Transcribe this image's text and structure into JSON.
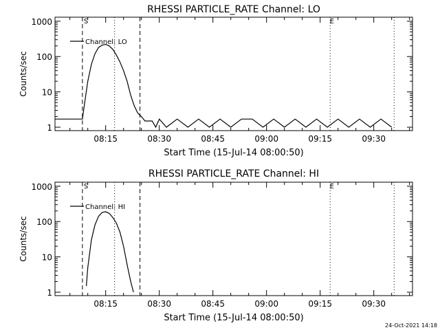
{
  "chart_data": [
    {
      "type": "line",
      "title": "RHESSI PARTICLE_RATE Channel: LO",
      "xlabel": "Start Time (15-Jul-14 08:00:50)",
      "ylabel": "Counts/sec",
      "x_tick_labels": [
        "08:15",
        "08:30",
        "08:45",
        "09:00",
        "09:15",
        "09:30"
      ],
      "x_tick_minutes": [
        15,
        30,
        45,
        60,
        75,
        90
      ],
      "y_tick_labels": [
        "1",
        "10",
        "100",
        "1000"
      ],
      "y_ticks": [
        1,
        10,
        100,
        1000
      ],
      "yscale": "log",
      "xlim_minutes": [
        0.83,
        100.83
      ],
      "ylim": [
        0.8,
        1300
      ],
      "legend": "Channel: LO",
      "legend_placement": "top-left",
      "marker_labels": [
        {
          "text": "S",
          "x_minutes": 9.5
        },
        {
          "text": "E",
          "x_minutes": 78.3
        }
      ],
      "dashed_lines_minutes": [
        8.5,
        24.6
      ],
      "dotted_lines_minutes": [
        17.5,
        77.8,
        95.7
      ],
      "series": [
        {
          "x": [
            0.8,
            6,
            8.5,
            9,
            10,
            11,
            12,
            13,
            14,
            15,
            16,
            17,
            18,
            19,
            20,
            21,
            22,
            23,
            24,
            25,
            26,
            27,
            28,
            29,
            30,
            32,
            35,
            38,
            41,
            44,
            47,
            50,
            53,
            56,
            59,
            62,
            65,
            68,
            71,
            74,
            77,
            80,
            83,
            86,
            89,
            92,
            95
          ],
          "y": [
            1.7,
            1.7,
            1.7,
            4,
            20,
            60,
            120,
            180,
            210,
            220,
            200,
            160,
            110,
            70,
            40,
            20,
            8,
            4,
            2.5,
            2,
            1.5,
            1.5,
            1.5,
            1,
            1.7,
            1,
            1.7,
            1,
            1.7,
            1,
            1.7,
            1,
            1.7,
            1.7,
            1,
            1.7,
            1,
            1.7,
            1,
            1.7,
            1,
            1.7,
            1,
            1.7,
            1,
            1.7,
            1
          ]
        }
      ]
    },
    {
      "type": "line",
      "title": "RHESSI PARTICLE_RATE Channel: HI",
      "xlabel": "Start Time (15-Jul-14 08:00:50)",
      "ylabel": "Counts/sec",
      "x_tick_labels": [
        "08:15",
        "08:30",
        "08:45",
        "09:00",
        "09:15",
        "09:30"
      ],
      "x_tick_minutes": [
        15,
        30,
        45,
        60,
        75,
        90
      ],
      "y_tick_labels": [
        "1",
        "10",
        "100",
        "1000"
      ],
      "y_ticks": [
        1,
        10,
        100,
        1000
      ],
      "yscale": "log",
      "xlim_minutes": [
        0.83,
        100.83
      ],
      "ylim": [
        0.8,
        1300
      ],
      "legend": "Channel: HI",
      "legend_placement": "top-left",
      "marker_labels": [
        {
          "text": "S",
          "x_minutes": 9.5
        },
        {
          "text": "E",
          "x_minutes": 78.3
        }
      ],
      "dashed_lines_minutes": [
        8.5,
        24.6
      ],
      "dotted_lines_minutes": [
        17.5,
        77.8,
        95.7
      ],
      "series": [
        {
          "x": [
            9.6,
            10,
            11,
            12,
            13,
            14,
            15,
            16,
            17,
            18,
            19,
            20,
            21,
            22,
            22.8
          ],
          "y": [
            1.5,
            5,
            30,
            80,
            140,
            180,
            190,
            170,
            130,
            90,
            50,
            20,
            6,
            2,
            1
          ]
        }
      ]
    }
  ],
  "footer": {
    "timestamp": "24-Oct-2021 14:18"
  }
}
